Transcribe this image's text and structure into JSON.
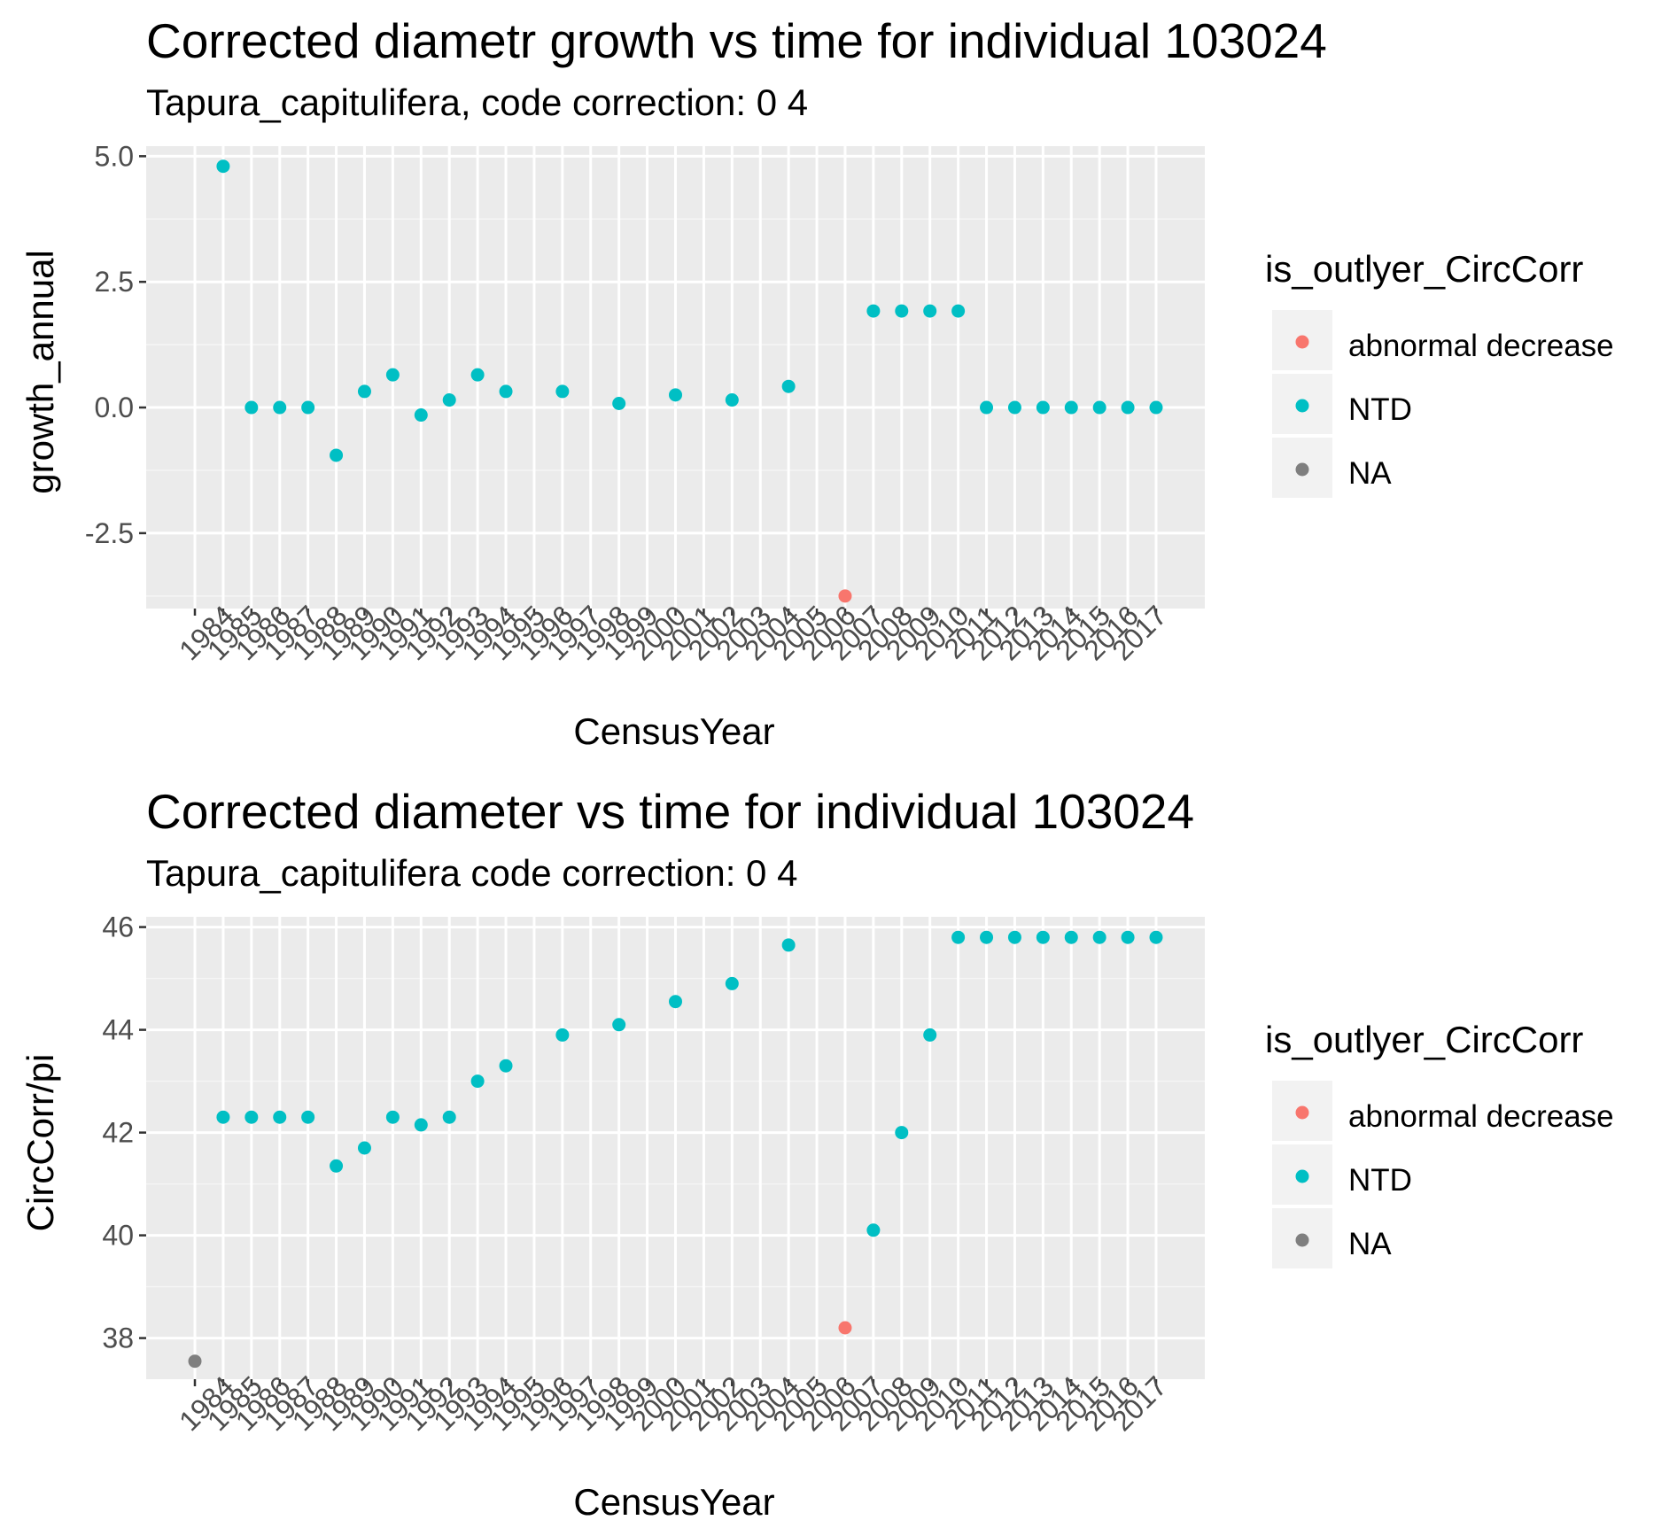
{
  "chart_data": [
    {
      "type": "scatter",
      "title": "Corrected diametr growth vs time for individual 103024",
      "subtitle": "Tapura_capitulifera, code correction: 0 4",
      "xlabel": "CensusYear",
      "ylabel": "growth_annual",
      "categories": [
        "1984",
        "1985",
        "1986",
        "1987",
        "1988",
        "1989",
        "1990",
        "1991",
        "1992",
        "1993",
        "1994",
        "1995",
        "1996",
        "1997",
        "1998",
        "1999",
        "2000",
        "2001",
        "2002",
        "2003",
        "2004",
        "2005",
        "2006",
        "2007",
        "2008",
        "2009",
        "2010",
        "2011",
        "2012",
        "2013",
        "2014",
        "2015",
        "2016",
        "2017"
      ],
      "yticks": [
        -2.5,
        0.0,
        2.5,
        5.0
      ],
      "ytick_labels": [
        "-2.5",
        "0.0",
        "2.5",
        "5.0"
      ],
      "ylim": [
        -4.0,
        5.2
      ],
      "legend": {
        "title": "is_outlyer_CircCorr",
        "entries": [
          {
            "label": "abnormal decrease",
            "color": "#F8766D"
          },
          {
            "label": "NTD",
            "color": "#00BFC4"
          },
          {
            "label": "NA",
            "color": "#7F7F7F"
          }
        ],
        "position": "right"
      },
      "series": [
        {
          "name": "abnormal decrease",
          "color": "#F8766D",
          "points": [
            [
              "2007",
              -3.75
            ]
          ]
        },
        {
          "name": "NTD",
          "color": "#00BFC4",
          "points": [
            [
              "1985",
              4.8
            ],
            [
              "1986",
              0.0
            ],
            [
              "1987",
              0.0
            ],
            [
              "1988",
              0.0
            ],
            [
              "1989",
              -0.95
            ],
            [
              "1990",
              0.32
            ],
            [
              "1991",
              0.65
            ],
            [
              "1992",
              -0.15
            ],
            [
              "1993",
              0.15
            ],
            [
              "1994",
              0.65
            ],
            [
              "1995",
              0.32
            ],
            [
              "1997",
              0.32
            ],
            [
              "1999",
              0.08
            ],
            [
              "2001",
              0.25
            ],
            [
              "2003",
              0.15
            ],
            [
              "2005",
              0.42
            ],
            [
              "2008",
              1.92
            ],
            [
              "2009",
              1.92
            ],
            [
              "2010",
              1.92
            ],
            [
              "2011",
              1.92
            ],
            [
              "2012",
              0.0
            ],
            [
              "2013",
              0.0
            ],
            [
              "2014",
              0.0
            ],
            [
              "2015",
              0.0
            ],
            [
              "2016",
              0.0
            ],
            [
              "2017",
              0.0
            ],
            [
              "2018",
              0.0
            ]
          ]
        }
      ],
      "grid": true
    },
    {
      "type": "scatter",
      "title": "Corrected diameter vs time for individual 103024",
      "subtitle": "Tapura_capitulifera code correction: 0 4",
      "xlabel": "CensusYear",
      "ylabel": "CircCorr/pi",
      "categories": [
        "1984",
        "1985",
        "1986",
        "1987",
        "1988",
        "1989",
        "1990",
        "1991",
        "1992",
        "1993",
        "1994",
        "1995",
        "1996",
        "1997",
        "1998",
        "1999",
        "2000",
        "2001",
        "2002",
        "2003",
        "2004",
        "2005",
        "2006",
        "2007",
        "2008",
        "2009",
        "2010",
        "2011",
        "2012",
        "2013",
        "2014",
        "2015",
        "2016",
        "2017"
      ],
      "yticks": [
        38,
        40,
        42,
        44,
        46
      ],
      "ytick_labels": [
        "38",
        "40",
        "42",
        "44",
        "46"
      ],
      "ylim": [
        37.2,
        46.2
      ],
      "legend": {
        "title": "is_outlyer_CircCorr",
        "entries": [
          {
            "label": "abnormal decrease",
            "color": "#F8766D"
          },
          {
            "label": "NTD",
            "color": "#00BFC4"
          },
          {
            "label": "NA",
            "color": "#7F7F7F"
          }
        ],
        "position": "right"
      },
      "series": [
        {
          "name": "abnormal decrease",
          "color": "#F8766D",
          "points": [
            [
              "2007",
              38.2
            ]
          ]
        },
        {
          "name": "NTD",
          "color": "#00BFC4",
          "points": [
            [
              "1985",
              42.3
            ],
            [
              "1986",
              42.3
            ],
            [
              "1987",
              42.3
            ],
            [
              "1988",
              42.3
            ],
            [
              "1989",
              41.35
            ],
            [
              "1990",
              41.7
            ],
            [
              "1991",
              42.3
            ],
            [
              "1992",
              42.15
            ],
            [
              "1993",
              42.3
            ],
            [
              "1994",
              43.0
            ],
            [
              "1995",
              43.3
            ],
            [
              "1997",
              43.9
            ],
            [
              "1999",
              44.1
            ],
            [
              "2001",
              44.55
            ],
            [
              "2003",
              44.9
            ],
            [
              "2005",
              45.65
            ],
            [
              "2008",
              40.1
            ],
            [
              "2009",
              42.0
            ],
            [
              "2010",
              43.9
            ],
            [
              "2011",
              45.8
            ],
            [
              "2012",
              45.8
            ],
            [
              "2013",
              45.8
            ],
            [
              "2014",
              45.8
            ],
            [
              "2015",
              45.8
            ],
            [
              "2016",
              45.8
            ],
            [
              "2017",
              45.8
            ],
            [
              "2018",
              45.8
            ]
          ]
        },
        {
          "name": "NA",
          "color": "#7F7F7F",
          "points": [
            [
              "1984",
              37.55
            ]
          ]
        }
      ],
      "grid": true
    }
  ]
}
